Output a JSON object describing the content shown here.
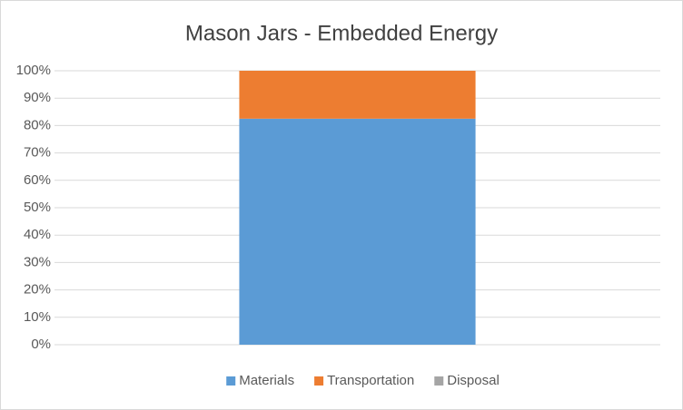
{
  "chart_data": {
    "type": "stacked_bar",
    "title": "Mason Jars - Embedded Energy",
    "categories": [
      null
    ],
    "series": [
      {
        "name": "Materials",
        "color": "#5b9bd5",
        "values": [
          82.5
        ]
      },
      {
        "name": "Transportation",
        "color": "#ed7d31",
        "values": [
          17.5
        ]
      },
      {
        "name": "Disposal",
        "color": "#a5a5a5",
        "values": [
          0
        ]
      }
    ],
    "ylim": [
      0,
      100
    ],
    "yticks": [
      {
        "value": 0,
        "label": "0%"
      },
      {
        "value": 10,
        "label": "10%"
      },
      {
        "value": 20,
        "label": "20%"
      },
      {
        "value": 30,
        "label": "30%"
      },
      {
        "value": 40,
        "label": "40%"
      },
      {
        "value": 50,
        "label": "50%"
      },
      {
        "value": 60,
        "label": "60%"
      },
      {
        "value": 70,
        "label": "70%"
      },
      {
        "value": 80,
        "label": "80%"
      },
      {
        "value": 90,
        "label": "90%"
      },
      {
        "value": 100,
        "label": "100%"
      }
    ],
    "grid": true,
    "legend": "bottom"
  }
}
